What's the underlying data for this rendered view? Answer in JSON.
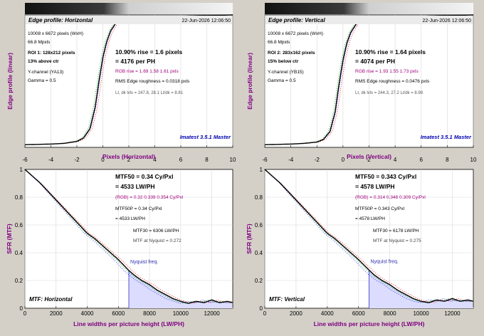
{
  "panels": [
    {
      "id": "edge-h",
      "kind": "edge",
      "title": "Edge profile: Horizontal",
      "date": "22-Jun-2026 12:06:50",
      "image_size": "10008 x 6672 pixels (WxH)",
      "mpxls": "66.8 Mpxls",
      "roi": "ROI 1:  128x212 pixels",
      "roi_pos": "13% above ctr",
      "channel": "Y-channel  (YA13)",
      "gamma": "Gamma = 0.5",
      "rise": "10.90% rise = 1.6 pixels",
      "per_ph": "= 4176 per PH",
      "rgb_rise": "RGB rise = 1.69  1.58  1.61 pxls",
      "roughness": "RMS Edge roughness = 0.0318 pxls",
      "levels": "Lt, dk lvls = 247.8, 28.1   Lt/dk = 8.81",
      "watermark": "Imatest 3.5.1 Master",
      "xlabel": "Pixels (Horizontal)",
      "ylabel": "Edge profile (linear)",
      "xticks": [
        "-6",
        "-4",
        "-2",
        "0",
        "2",
        "4",
        "6",
        "8",
        "10"
      ]
    },
    {
      "id": "edge-v",
      "kind": "edge",
      "title": "Edge profile: Vertical",
      "date": "22-Jun-2026 12:06:50",
      "image_size": "10008 x 6672 pixels (WxH)",
      "mpxls": "66.8 Mpxls",
      "roi": "ROI 2:  283x162 pixels",
      "roi_pos": "15% below ctr",
      "channel": "Y-channel  (YB15)",
      "gamma": "Gamma = 0.5",
      "rise": "10.90% rise = 1.64 pixels",
      "per_ph": "= 4074 per PH",
      "rgb_rise": "RGB rise = 1.93  1.55  1.73 pxls",
      "roughness": "RMS Edge roughness = 0.0476 pxls",
      "levels": "Lt, dk lvls = 244.3, 27.2   Lt/dk = 8.98",
      "watermark": "Imatest 3.5.1 Master",
      "xlabel": "Pixels (Vertical)",
      "ylabel": "Edge profile (linear)",
      "xticks": [
        "-6",
        "-4",
        "-2",
        "0",
        "2",
        "4",
        "6",
        "8",
        "10"
      ]
    },
    {
      "id": "mtf-h",
      "kind": "mtf",
      "title": "MTF: Horizontal",
      "mtf50": "MTF50 = 0.34 Cy/Pxl",
      "mtf50_lw": "= 4533 LW/PH",
      "rgb": "(RGB) = 0.32  0.339  0.354 Cy/Pxl",
      "mtf50p": "MTF50P = 0.34 Cy/Pxl",
      "mtf50p_lw": "= 4533 LW/PH",
      "mtf30": "MTF30 = 6306 LW/PH",
      "nyq_mtf": "MTF at Nyquist = 0.272",
      "nyq_label": "Nyquist freq.",
      "xlabel": "Line widths per picture height (LW/PH)",
      "ylabel": "SFR (MTF)",
      "xticks": [
        "0",
        "2000",
        "4000",
        "6000",
        "8000",
        "10000",
        "12000"
      ],
      "yticks": [
        "0",
        "0.2",
        "0.4",
        "0.6",
        "0.8",
        "1"
      ]
    },
    {
      "id": "mtf-v",
      "kind": "mtf",
      "title": "MTF: Vertical",
      "mtf50": "MTF50 = 0.343 Cy/Pxl",
      "mtf50_lw": "= 4578 LW/PH",
      "rgb": "(RGB) = 0.314  0.348  0.309 Cy/Pxl",
      "mtf50p": "MTF50P = 0.343 Cy/Pxl",
      "mtf50p_lw": "= 4578 LW/PH",
      "mtf30": "MTF30 = 6178 LW/PH",
      "nyq_mtf": "MTF at Nyquist = 0.275",
      "nyq_label": "Nyquist freq.",
      "xlabel": "Line widths per picture height (LW/PH)",
      "ylabel": "SFR (MTF)",
      "xticks": [
        "0",
        "2000",
        "4000",
        "6000",
        "8000",
        "10000",
        "12000"
      ],
      "yticks": [
        "0",
        "0.2",
        "0.4",
        "0.6",
        "0.8",
        "1"
      ]
    }
  ],
  "chart_data": [
    {
      "type": "line",
      "title": "Edge profile: Horizontal",
      "xlabel": "Pixels (Horizontal)",
      "ylabel": "Edge profile (linear)",
      "xlim": [
        -6,
        10
      ],
      "ylim": [
        0,
        1
      ],
      "series": [
        {
          "x": [
            -6,
            -4,
            -3,
            -2,
            -1.5,
            -1,
            -0.6,
            -0.3,
            0,
            0.3,
            0.6,
            1,
            1.5,
            2,
            3,
            4,
            6,
            8,
            10
          ],
          "y": [
            0.02,
            0.025,
            0.03,
            0.045,
            0.07,
            0.14,
            0.3,
            0.5,
            0.68,
            0.8,
            0.88,
            0.94,
            0.965,
            0.975,
            0.98,
            0.985,
            0.99,
            0.995,
            1.0
          ]
        }
      ]
    },
    {
      "type": "line",
      "title": "Edge profile: Vertical",
      "xlabel": "Pixels (Vertical)",
      "ylabel": "Edge profile (linear)",
      "xlim": [
        -6,
        10
      ],
      "ylim": [
        0,
        1
      ],
      "series": [
        {
          "x": [
            -6,
            -4,
            -3,
            -2,
            -1.5,
            -1,
            -0.6,
            -0.3,
            0,
            0.3,
            0.6,
            1,
            1.5,
            2,
            3,
            4,
            6,
            8,
            10
          ],
          "y": [
            0.02,
            0.025,
            0.03,
            0.04,
            0.06,
            0.12,
            0.27,
            0.48,
            0.66,
            0.79,
            0.87,
            0.93,
            0.96,
            0.975,
            0.98,
            0.985,
            0.99,
            0.995,
            1.0
          ]
        }
      ]
    },
    {
      "type": "line",
      "title": "MTF: Horizontal",
      "xlabel": "Line widths per picture height (LW/PH)",
      "ylabel": "SFR (MTF)",
      "xlim": [
        0,
        13344
      ],
      "ylim": [
        0,
        1
      ],
      "nyquist": 6672,
      "series": [
        {
          "x": [
            0,
            500,
            1000,
            1500,
            2000,
            2500,
            3000,
            3500,
            4000,
            4500,
            5000,
            5500,
            6000,
            6672,
            7000,
            7500,
            8000,
            8500,
            9000,
            9500,
            10000,
            10500,
            11000,
            11500,
            12000,
            12500,
            13000,
            13344
          ],
          "y": [
            1.0,
            0.95,
            0.9,
            0.84,
            0.78,
            0.72,
            0.66,
            0.6,
            0.54,
            0.5,
            0.45,
            0.4,
            0.35,
            0.272,
            0.24,
            0.2,
            0.17,
            0.13,
            0.1,
            0.07,
            0.05,
            0.035,
            0.05,
            0.04,
            0.06,
            0.04,
            0.05,
            0.04
          ]
        }
      ]
    },
    {
      "type": "line",
      "title": "MTF: Vertical",
      "xlabel": "Line widths per picture height (LW/PH)",
      "ylabel": "SFR (MTF)",
      "xlim": [
        0,
        13344
      ],
      "ylim": [
        0,
        1
      ],
      "nyquist": 6672,
      "series": [
        {
          "x": [
            0,
            500,
            1000,
            1500,
            2000,
            2500,
            3000,
            3500,
            4000,
            4500,
            5000,
            5500,
            6000,
            6672,
            7000,
            7500,
            8000,
            8500,
            9000,
            9500,
            10000,
            10500,
            11000,
            11500,
            12000,
            12500,
            13000,
            13344
          ],
          "y": [
            1.0,
            0.95,
            0.9,
            0.84,
            0.78,
            0.72,
            0.66,
            0.6,
            0.54,
            0.5,
            0.45,
            0.4,
            0.35,
            0.275,
            0.24,
            0.2,
            0.17,
            0.13,
            0.1,
            0.07,
            0.05,
            0.04,
            0.06,
            0.05,
            0.07,
            0.05,
            0.06,
            0.05
          ]
        }
      ]
    }
  ]
}
